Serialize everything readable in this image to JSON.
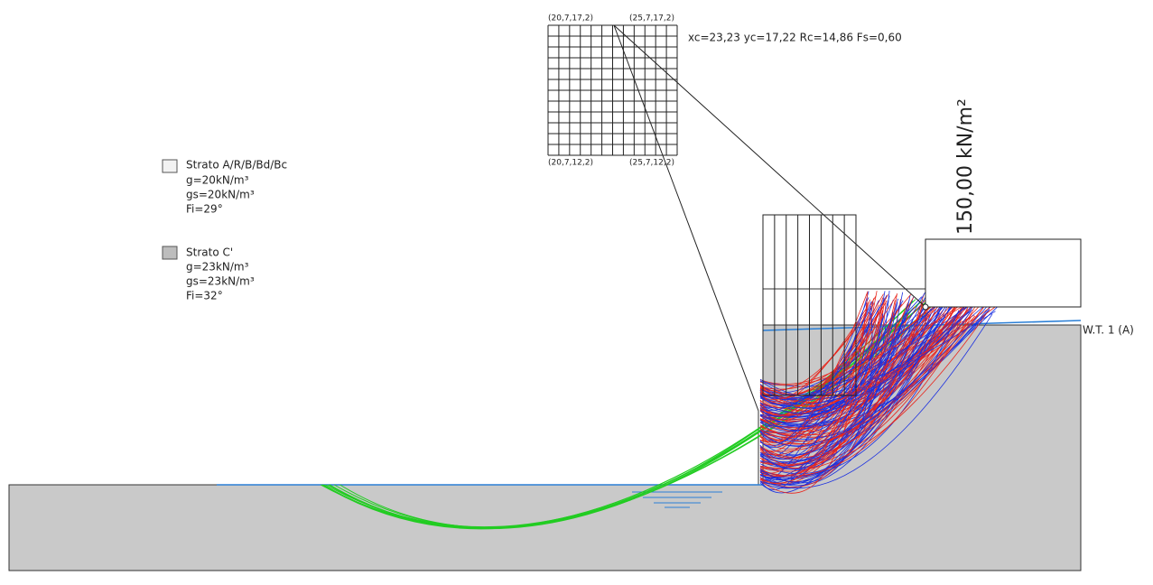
{
  "grid": {
    "corners": [
      "(20,7,17,2)",
      "(25,7,17,2)",
      "(20,7,12,2)",
      "(25,7,12,2)"
    ]
  },
  "result": "xc=23,23 yc=17,22 Rc=14,86 Fs=0,60",
  "load": "150,00 kN/m²",
  "water_table": "W.T. 1 (A)",
  "legend": [
    {
      "name": "Strato A/R/B/Bd/Bc",
      "lines": [
        "g=20kN/m³",
        "gs=20kN/m³",
        "Fi=29°"
      ]
    },
    {
      "name": "Strato C'",
      "lines": [
        "g=23kN/m³",
        "gs=23kN/m³",
        "Fi=32°"
      ]
    }
  ]
}
